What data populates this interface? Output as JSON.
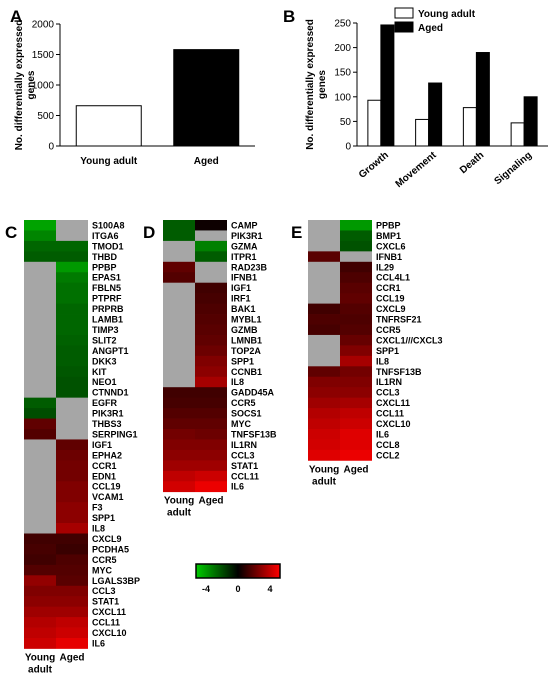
{
  "chart_data": [
    {
      "panel": "A",
      "type": "bar",
      "categories": [
        "Young adult",
        "Aged"
      ],
      "values": [
        660,
        1580
      ],
      "ylabel": "No. differentially expressed genes",
      "ylim": [
        0,
        2000
      ],
      "yticks": [
        0,
        500,
        1000,
        1500,
        2000
      ],
      "fills": [
        "#ffffff",
        "#000000"
      ]
    },
    {
      "panel": "B",
      "type": "bar",
      "categories": [
        "Growth",
        "Movement",
        "Death",
        "Signaling"
      ],
      "series": [
        {
          "name": "Young adult",
          "fill": "#ffffff",
          "values": [
            93,
            54,
            78,
            47
          ]
        },
        {
          "name": "Aged",
          "fill": "#000000",
          "values": [
            246,
            128,
            190,
            100
          ]
        }
      ],
      "ylabel": "No. differentially expressed genes",
      "ylim": [
        0,
        250
      ],
      "yticks": [
        0,
        50,
        100,
        150,
        200,
        250
      ],
      "legend": "top-right"
    },
    {
      "panel": "C",
      "type": "heatmap",
      "columns": [
        "Young",
        "Aged"
      ],
      "column_sub": "adult",
      "rows": [
        {
          "gene": "S100A8",
          "v": [
            -3.2,
            null
          ]
        },
        {
          "gene": "ITGA6",
          "v": [
            -2.6,
            null
          ]
        },
        {
          "gene": "TMOD1",
          "v": [
            -2.0,
            -2.0
          ]
        },
        {
          "gene": "THBD",
          "v": [
            -1.8,
            -1.8
          ]
        },
        {
          "gene": "PPBP",
          "v": [
            null,
            -3.0
          ]
        },
        {
          "gene": "EPAS1",
          "v": [
            null,
            -2.4
          ]
        },
        {
          "gene": "FBLN5",
          "v": [
            null,
            -2.2
          ]
        },
        {
          "gene": "PTPRF",
          "v": [
            null,
            -2.2
          ]
        },
        {
          "gene": "PRPRB",
          "v": [
            null,
            -2.0
          ]
        },
        {
          "gene": "LAMB1",
          "v": [
            null,
            -2.0
          ]
        },
        {
          "gene": "TIMP3",
          "v": [
            null,
            -2.0
          ]
        },
        {
          "gene": "SLIT2",
          "v": [
            null,
            -1.9
          ]
        },
        {
          "gene": "ANGPT1",
          "v": [
            null,
            -1.8
          ]
        },
        {
          "gene": "DKK3",
          "v": [
            null,
            -1.8
          ]
        },
        {
          "gene": "KIT",
          "v": [
            null,
            -1.7
          ]
        },
        {
          "gene": "NEO1",
          "v": [
            null,
            -1.6
          ]
        },
        {
          "gene": "CTNND1",
          "v": [
            null,
            -1.6
          ]
        },
        {
          "gene": "EGFR",
          "v": [
            -1.8,
            null
          ]
        },
        {
          "gene": "PIK3R1",
          "v": [
            -1.5,
            null
          ]
        },
        {
          "gene": "THBS3",
          "v": [
            1.5,
            null
          ]
        },
        {
          "gene": "SERPING1",
          "v": [
            1.3,
            null
          ]
        },
        {
          "gene": "IGF1",
          "v": [
            null,
            1.5
          ]
        },
        {
          "gene": "EPHA2",
          "v": [
            null,
            1.7
          ]
        },
        {
          "gene": "CCR1",
          "v": [
            null,
            1.8
          ]
        },
        {
          "gene": "EDN1",
          "v": [
            null,
            1.8
          ]
        },
        {
          "gene": "CCL19",
          "v": [
            null,
            2.0
          ]
        },
        {
          "gene": "VCAM1",
          "v": [
            null,
            2.0
          ]
        },
        {
          "gene": "F3",
          "v": [
            null,
            2.2
          ]
        },
        {
          "gene": "SPP1",
          "v": [
            null,
            2.2
          ]
        },
        {
          "gene": "IL8",
          "v": [
            null,
            2.6
          ]
        },
        {
          "gene": "CXCL9",
          "v": [
            1.0,
            1.0
          ]
        },
        {
          "gene": "PCDHA5",
          "v": [
            1.1,
            0.9
          ]
        },
        {
          "gene": "CCR5",
          "v": [
            1.0,
            1.2
          ]
        },
        {
          "gene": "MYC",
          "v": [
            1.3,
            1.3
          ]
        },
        {
          "gene": "LGALS3BP",
          "v": [
            2.3,
            1.4
          ]
        },
        {
          "gene": "CCL3",
          "v": [
            2.0,
            2.0
          ]
        },
        {
          "gene": "STAT1",
          "v": [
            2.2,
            2.2
          ]
        },
        {
          "gene": "CXCL11",
          "v": [
            2.5,
            2.5
          ]
        },
        {
          "gene": "CCL11",
          "v": [
            2.8,
            3.0
          ]
        },
        {
          "gene": "CXCL10",
          "v": [
            3.0,
            3.2
          ]
        },
        {
          "gene": "IL6",
          "v": [
            3.2,
            3.6
          ]
        }
      ]
    },
    {
      "panel": "D",
      "type": "heatmap",
      "columns": [
        "Young",
        "Aged"
      ],
      "column_sub": "adult",
      "rows": [
        {
          "gene": "CAMP",
          "v": [
            -1.8,
            0.2
          ]
        },
        {
          "gene": "PIK3R1",
          "v": [
            -1.8,
            null
          ]
        },
        {
          "gene": "GZMA",
          "v": [
            null,
            -2.5
          ]
        },
        {
          "gene": "ITPR1",
          "v": [
            null,
            -1.8
          ]
        },
        {
          "gene": "RAD23B",
          "v": [
            1.5,
            null
          ]
        },
        {
          "gene": "IFNB1",
          "v": [
            1.3,
            null
          ]
        },
        {
          "gene": "IGF1",
          "v": [
            null,
            1.0
          ]
        },
        {
          "gene": "IRF1",
          "v": [
            null,
            1.1
          ]
        },
        {
          "gene": "BAK1",
          "v": [
            null,
            1.2
          ]
        },
        {
          "gene": "MYBL1",
          "v": [
            null,
            1.3
          ]
        },
        {
          "gene": "GZMB",
          "v": [
            null,
            1.4
          ]
        },
        {
          "gene": "LMNB1",
          "v": [
            null,
            1.5
          ]
        },
        {
          "gene": "TOP2A",
          "v": [
            null,
            1.7
          ]
        },
        {
          "gene": "SPP1",
          "v": [
            null,
            2.0
          ]
        },
        {
          "gene": "CCNB1",
          "v": [
            null,
            2.2
          ]
        },
        {
          "gene": "IL8",
          "v": [
            null,
            2.6
          ]
        },
        {
          "gene": "GADD45A",
          "v": [
            1.0,
            1.0
          ]
        },
        {
          "gene": "CCR5",
          "v": [
            1.1,
            1.1
          ]
        },
        {
          "gene": "SOCS1",
          "v": [
            1.3,
            1.3
          ]
        },
        {
          "gene": "MYC",
          "v": [
            1.5,
            1.5
          ]
        },
        {
          "gene": "TNFSF13B",
          "v": [
            1.8,
            1.7
          ]
        },
        {
          "gene": "IL1RN",
          "v": [
            2.0,
            2.0
          ]
        },
        {
          "gene": "CCL3",
          "v": [
            2.2,
            2.2
          ]
        },
        {
          "gene": "STAT1",
          "v": [
            2.5,
            2.5
          ]
        },
        {
          "gene": "CCL11",
          "v": [
            3.0,
            3.2
          ]
        },
        {
          "gene": "IL6",
          "v": [
            3.3,
            3.7
          ]
        }
      ]
    },
    {
      "panel": "E",
      "type": "heatmap",
      "columns": [
        "Young",
        "Aged"
      ],
      "column_sub": "adult",
      "rows": [
        {
          "gene": "PPBP",
          "v": [
            null,
            -3.0
          ]
        },
        {
          "gene": "BMP1",
          "v": [
            null,
            -1.8
          ]
        },
        {
          "gene": "CXCL6",
          "v": [
            null,
            -1.6
          ]
        },
        {
          "gene": "IFNB1",
          "v": [
            1.4,
            null
          ]
        },
        {
          "gene": "IL29",
          "v": [
            null,
            1.0
          ]
        },
        {
          "gene": "CCL4L1",
          "v": [
            null,
            1.2
          ]
        },
        {
          "gene": "CCR1",
          "v": [
            null,
            1.4
          ]
        },
        {
          "gene": "CCL19",
          "v": [
            null,
            1.5
          ]
        },
        {
          "gene": "CXCL9",
          "v": [
            1.0,
            1.3
          ]
        },
        {
          "gene": "TNFRSF21",
          "v": [
            1.2,
            1.2
          ]
        },
        {
          "gene": "CCR5",
          "v": [
            1.1,
            1.3
          ]
        },
        {
          "gene": "CXCL1///CXCL3",
          "v": [
            null,
            1.6
          ]
        },
        {
          "gene": "SPP1",
          "v": [
            null,
            2.0
          ]
        },
        {
          "gene": "IL8",
          "v": [
            null,
            2.6
          ]
        },
        {
          "gene": "TNFSF13B",
          "v": [
            1.5,
            1.8
          ]
        },
        {
          "gene": "IL1RN",
          "v": [
            2.0,
            2.0
          ]
        },
        {
          "gene": "CCL3",
          "v": [
            2.2,
            2.2
          ]
        },
        {
          "gene": "CXCL11",
          "v": [
            2.5,
            2.6
          ]
        },
        {
          "gene": "CCL11",
          "v": [
            2.8,
            3.0
          ]
        },
        {
          "gene": "CXCL10",
          "v": [
            3.0,
            3.2
          ]
        },
        {
          "gene": "IL6",
          "v": [
            3.2,
            3.5
          ]
        },
        {
          "gene": "CCL8",
          "v": [
            3.3,
            3.5
          ]
        },
        {
          "gene": "CCL2",
          "v": [
            3.5,
            3.7
          ]
        }
      ]
    }
  ],
  "colorscale": {
    "ticks": [
      -4,
      0,
      4
    ],
    "low": "#00cc00",
    "mid": "#000000",
    "high": "#ff0000",
    "missing": "#a6a6a6"
  }
}
